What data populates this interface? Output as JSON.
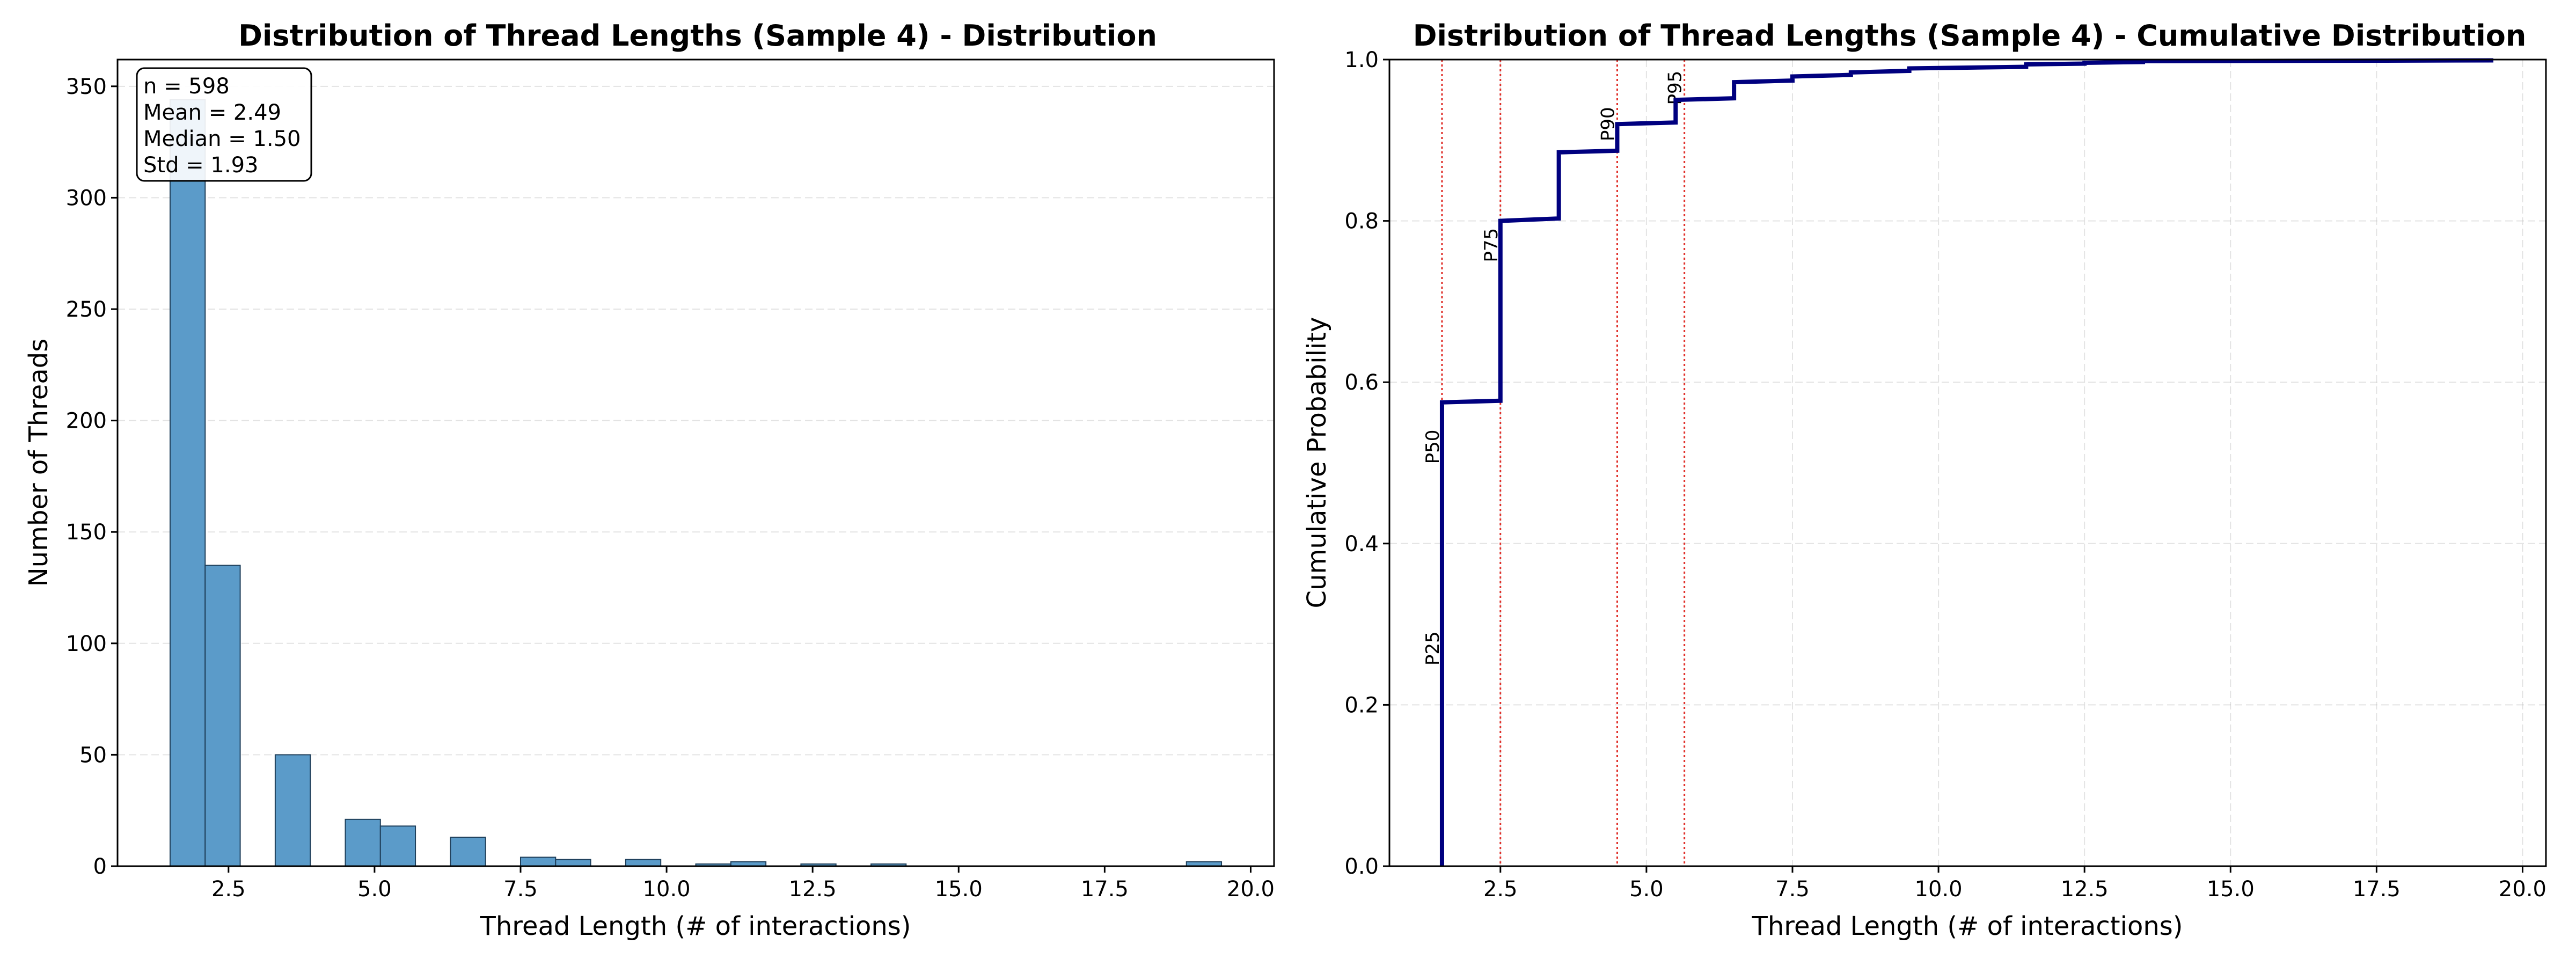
{
  "chart_data": [
    {
      "type": "bar",
      "title": "Distribution of Thread Lengths (Sample 4) - Distribution",
      "xlabel": "Thread Length (# of interactions)",
      "ylabel": "Number of Threads",
      "xlim": [
        0.6,
        20.4
      ],
      "ylim": [
        0,
        362
      ],
      "xticks": [
        "2.5",
        "5.0",
        "7.5",
        "10.0",
        "12.5",
        "15.0",
        "17.5",
        "20.0"
      ],
      "xtick_values": [
        2.5,
        5.0,
        7.5,
        10.0,
        12.5,
        15.0,
        17.5,
        20.0
      ],
      "yticks": [
        "0",
        "50",
        "100",
        "150",
        "200",
        "250",
        "300",
        "350"
      ],
      "ytick_values": [
        0,
        50,
        100,
        150,
        200,
        250,
        300,
        350
      ],
      "grid": "y-dashed",
      "bar_color": "#5b9bc9",
      "bar_edge_color": "#1f3f5a",
      "bins": [
        {
          "x0": 1.5,
          "x1": 2.1,
          "count": 344
        },
        {
          "x0": 2.1,
          "x1": 2.7,
          "count": 135
        },
        {
          "x0": 3.3,
          "x1": 3.9,
          "count": 50
        },
        {
          "x0": 4.5,
          "x1": 5.1,
          "count": 21
        },
        {
          "x0": 5.1,
          "x1": 5.7,
          "count": 18
        },
        {
          "x0": 6.3,
          "x1": 6.9,
          "count": 13
        },
        {
          "x0": 7.5,
          "x1": 8.1,
          "count": 4
        },
        {
          "x0": 8.1,
          "x1": 8.7,
          "count": 3
        },
        {
          "x0": 9.3,
          "x1": 9.9,
          "count": 3
        },
        {
          "x0": 10.5,
          "x1": 11.1,
          "count": 1
        },
        {
          "x0": 11.1,
          "x1": 11.7,
          "count": 2
        },
        {
          "x0": 12.3,
          "x1": 12.9,
          "count": 1
        },
        {
          "x0": 13.5,
          "x1": 14.1,
          "count": 1
        },
        {
          "x0": 18.9,
          "x1": 19.5,
          "count": 2
        }
      ],
      "stats_box": [
        "n = 598",
        "Mean = 2.49",
        "Median = 1.50",
        "Std = 1.93"
      ]
    },
    {
      "type": "line",
      "title": "Distribution of Thread Lengths (Sample 4) - Cumulative Distribution",
      "xlabel": "Thread Length (# of interactions)",
      "ylabel": "Cumulative Probability",
      "xlim": [
        0.6,
        20.4
      ],
      "ylim": [
        0,
        1.0
      ],
      "xticks": [
        "2.5",
        "5.0",
        "7.5",
        "10.0",
        "12.5",
        "15.0",
        "17.5",
        "20.0"
      ],
      "xtick_values": [
        2.5,
        5.0,
        7.5,
        10.0,
        12.5,
        15.0,
        17.5,
        20.0
      ],
      "yticks": [
        "0.0",
        "0.2",
        "0.4",
        "0.6",
        "0.8",
        "1.0"
      ],
      "ytick_values": [
        0,
        0.2,
        0.4,
        0.6,
        0.8,
        1.0
      ],
      "grid": "both-dashed",
      "line_color": "#00007f",
      "percentile_color": "#e0302a",
      "step_points": [
        {
          "x": 1.5,
          "y": 0.0
        },
        {
          "x": 1.5,
          "y": 0.575
        },
        {
          "x": 2.5,
          "y": 0.577
        },
        {
          "x": 2.5,
          "y": 0.8
        },
        {
          "x": 3.5,
          "y": 0.803
        },
        {
          "x": 3.5,
          "y": 0.885
        },
        {
          "x": 4.5,
          "y": 0.887
        },
        {
          "x": 4.5,
          "y": 0.92
        },
        {
          "x": 5.5,
          "y": 0.922
        },
        {
          "x": 5.5,
          "y": 0.95
        },
        {
          "x": 6.5,
          "y": 0.952
        },
        {
          "x": 6.5,
          "y": 0.972
        },
        {
          "x": 7.5,
          "y": 0.974
        },
        {
          "x": 7.5,
          "y": 0.979
        },
        {
          "x": 8.5,
          "y": 0.981
        },
        {
          "x": 8.5,
          "y": 0.984
        },
        {
          "x": 9.5,
          "y": 0.986
        },
        {
          "x": 9.5,
          "y": 0.989
        },
        {
          "x": 11.5,
          "y": 0.991
        },
        {
          "x": 11.5,
          "y": 0.994
        },
        {
          "x": 12.5,
          "y": 0.995
        },
        {
          "x": 12.5,
          "y": 0.996
        },
        {
          "x": 13.5,
          "y": 0.997
        },
        {
          "x": 13.5,
          "y": 0.998
        },
        {
          "x": 19.5,
          "y": 0.999
        }
      ],
      "percentiles": [
        {
          "label": "P25",
          "x": 1.5,
          "label_y": 0.27
        },
        {
          "label": "P50",
          "x": 1.5,
          "label_y": 0.52
        },
        {
          "label": "P75",
          "x": 2.5,
          "label_y": 0.77
        },
        {
          "label": "P90",
          "x": 4.5,
          "label_y": 0.92
        },
        {
          "label": "P95",
          "x": 5.65,
          "label_y": 0.965
        }
      ]
    }
  ]
}
